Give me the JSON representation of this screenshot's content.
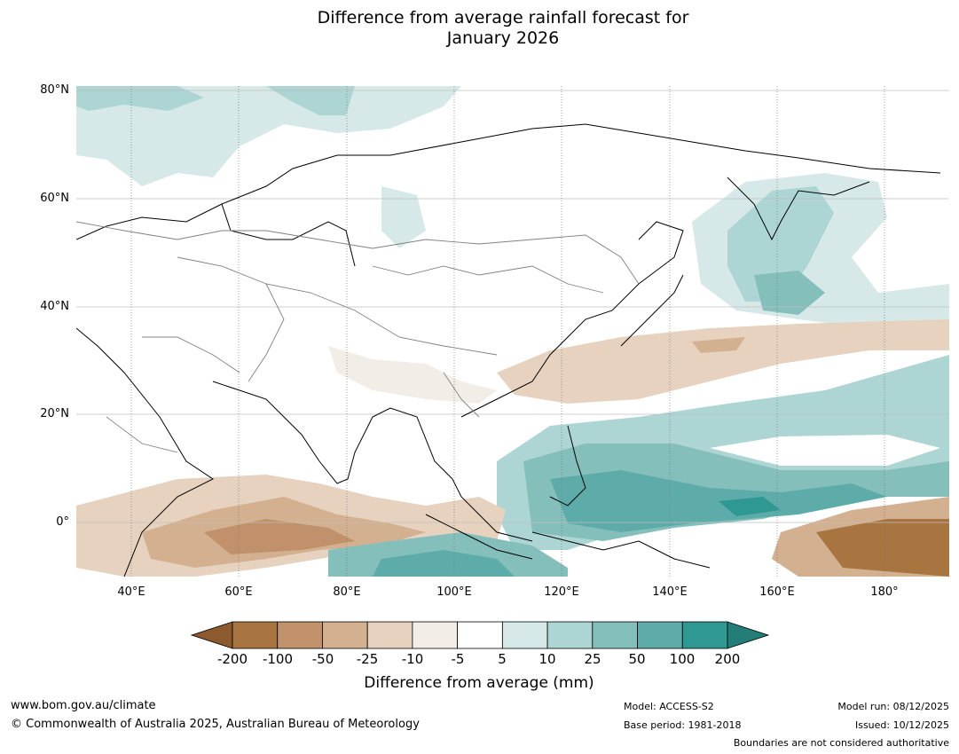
{
  "title": {
    "line1": "Difference from average rainfall forecast for",
    "line2": "January 2026"
  },
  "map": {
    "lat_labels": [
      "80°N",
      "60°N",
      "40°N",
      "20°N",
      "0°"
    ],
    "lon_labels": [
      "40°E",
      "60°E",
      "80°E",
      "100°E",
      "120°E",
      "140°E",
      "160°E",
      "180°"
    ]
  },
  "colorbar": {
    "title": "Difference from average (mm)",
    "ticks": [
      "-200",
      "-100",
      "-50",
      "-25",
      "-10",
      "-5",
      "5",
      "10",
      "25",
      "50",
      "100",
      "200"
    ],
    "colors": [
      "#a87440",
      "#c0916a",
      "#d3b190",
      "#e6d2bf",
      "#f2ede7",
      "#ffffff",
      "#d6e9e8",
      "#add5d4",
      "#84bfbc",
      "#5eacaa",
      "#2f9893"
    ],
    "under_color": "#8c5a2e",
    "over_color": "#237d78"
  },
  "footer": {
    "website": "www.bom.gov.au/climate",
    "copyright": "© Commonwealth of Australia 2025, Australian Bureau of Meteorology",
    "model": "Model: ACCESS-S2",
    "base_period": "Base period: 1981-2018",
    "model_run": "Model run: 08/12/2025",
    "issued": "Issued: 10/12/2025",
    "disclaimer": "Boundaries are not considered authoritative"
  }
}
